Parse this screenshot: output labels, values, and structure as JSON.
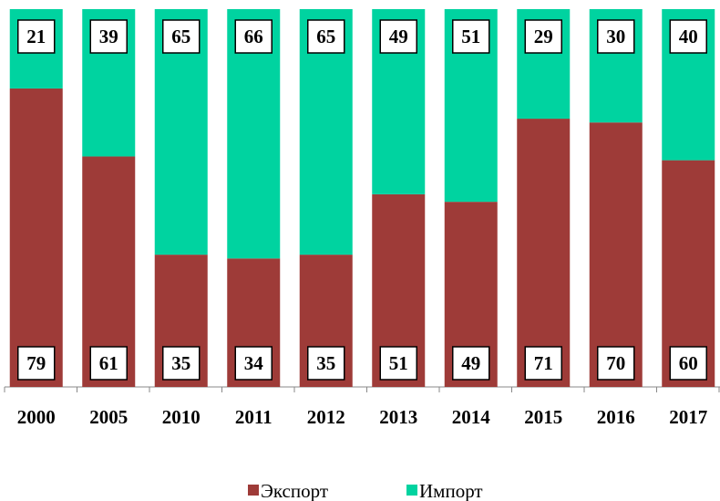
{
  "chart_data": {
    "type": "stacked_bar",
    "categories": [
      "2000",
      "2005",
      "2010",
      "2011",
      "2012",
      "2013",
      "2014",
      "2015",
      "2016",
      "2017"
    ],
    "series": [
      {
        "name": "Экспорт",
        "color": "#9e3b38",
        "values": [
          79,
          61,
          35,
          34,
          35,
          51,
          49,
          71,
          70,
          60
        ]
      },
      {
        "name": "Импорт",
        "color": "#00d3a0",
        "values": [
          21,
          39,
          65,
          66,
          65,
          49,
          51,
          29,
          30,
          40
        ]
      }
    ],
    "ylim": [
      0,
      100
    ],
    "legend": "bottom"
  }
}
